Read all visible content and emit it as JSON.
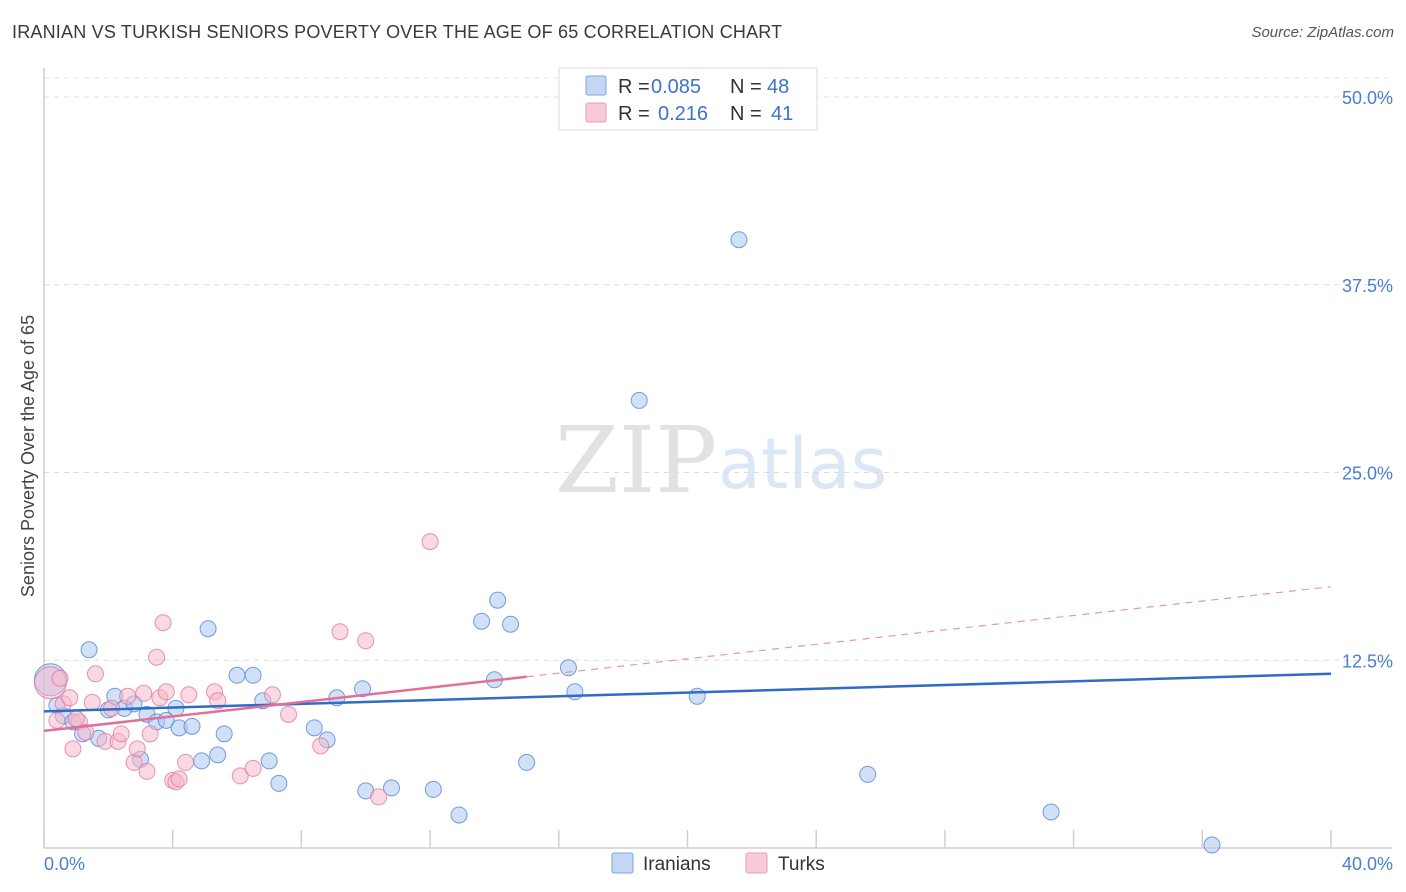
{
  "header": {
    "title": "IRANIAN VS TURKISH SENIORS POVERTY OVER THE AGE OF 65 CORRELATION CHART",
    "source": "Source: ZipAtlas.com"
  },
  "watermark": {
    "zip": "ZIP",
    "atlas": "atlas"
  },
  "legend": {
    "r_label": "R =",
    "n_label": "N =",
    "rows": [
      {
        "r": "0.085",
        "n": "48",
        "color": "#a9c7f0"
      },
      {
        "r": "0.216",
        "n": "41",
        "color": "#f6b9cc"
      }
    ]
  },
  "bottom_legend": [
    "Iranians",
    "Turks"
  ],
  "chart_data": {
    "type": "scatter",
    "title": "IRANIAN VS TURKISH SENIORS POVERTY OVER THE AGE OF 65 CORRELATION CHART",
    "xlabel": "",
    "ylabel": "Seniors Poverty Over the Age of 65",
    "xlim": [
      0,
      40
    ],
    "ylim": [
      0,
      52
    ],
    "x_tick_labels": [
      "0.0%",
      "40.0%"
    ],
    "y_ticks": [
      12.5,
      25.0,
      37.5,
      50.0
    ],
    "y_tick_labels": [
      "12.5%",
      "25.0%",
      "37.5%",
      "50.0%"
    ],
    "grid": true,
    "legend_position": "top-center",
    "series": [
      {
        "name": "Iranians",
        "color": "#4a7fd0",
        "fill": "#a9c7f0",
        "r": 0.085,
        "n": 48,
        "trend": {
          "x": [
            0,
            40
          ],
          "y": [
            9.1,
            11.6
          ],
          "style": "solid",
          "color": "#2f6bc7"
        },
        "points": [
          {
            "x": 0.2,
            "y": 11.2,
            "big": true
          },
          {
            "x": 0.4,
            "y": 9.5
          },
          {
            "x": 0.6,
            "y": 8.8
          },
          {
            "x": 0.9,
            "y": 8.4
          },
          {
            "x": 1.2,
            "y": 7.6
          },
          {
            "x": 1.4,
            "y": 13.2
          },
          {
            "x": 1.7,
            "y": 7.3
          },
          {
            "x": 2.0,
            "y": 9.2
          },
          {
            "x": 2.2,
            "y": 10.1
          },
          {
            "x": 2.5,
            "y": 9.3
          },
          {
            "x": 2.8,
            "y": 9.6
          },
          {
            "x": 3.0,
            "y": 5.9
          },
          {
            "x": 3.2,
            "y": 8.9
          },
          {
            "x": 3.5,
            "y": 8.4
          },
          {
            "x": 3.8,
            "y": 8.5
          },
          {
            "x": 4.1,
            "y": 9.3
          },
          {
            "x": 4.2,
            "y": 8.0
          },
          {
            "x": 4.6,
            "y": 8.1
          },
          {
            "x": 4.9,
            "y": 5.8
          },
          {
            "x": 5.1,
            "y": 14.6
          },
          {
            "x": 5.4,
            "y": 6.2
          },
          {
            "x": 5.6,
            "y": 7.6
          },
          {
            "x": 6.0,
            "y": 11.5
          },
          {
            "x": 6.5,
            "y": 11.5
          },
          {
            "x": 6.8,
            "y": 9.8
          },
          {
            "x": 7.0,
            "y": 5.8
          },
          {
            "x": 7.3,
            "y": 4.3
          },
          {
            "x": 8.4,
            "y": 8.0
          },
          {
            "x": 8.8,
            "y": 7.2
          },
          {
            "x": 9.1,
            "y": 10.0
          },
          {
            "x": 9.9,
            "y": 10.6
          },
          {
            "x": 10.0,
            "y": 3.8
          },
          {
            "x": 10.8,
            "y": 4.0
          },
          {
            "x": 12.1,
            "y": 3.9
          },
          {
            "x": 12.9,
            "y": 2.2
          },
          {
            "x": 13.6,
            "y": 15.1
          },
          {
            "x": 14.0,
            "y": 11.2
          },
          {
            "x": 14.1,
            "y": 16.5
          },
          {
            "x": 14.5,
            "y": 14.9
          },
          {
            "x": 15.0,
            "y": 5.7
          },
          {
            "x": 16.3,
            "y": 12.0
          },
          {
            "x": 16.5,
            "y": 10.4
          },
          {
            "x": 18.5,
            "y": 29.8
          },
          {
            "x": 20.3,
            "y": 10.1
          },
          {
            "x": 21.6,
            "y": 40.5
          },
          {
            "x": 25.6,
            "y": 4.9
          },
          {
            "x": 31.3,
            "y": 2.4
          },
          {
            "x": 36.3,
            "y": 0.2
          }
        ]
      },
      {
        "name": "Turks",
        "color": "#e07098",
        "fill": "#f6b9cc",
        "r": 0.216,
        "n": 41,
        "trend": {
          "x": [
            0,
            15
          ],
          "y": [
            7.8,
            11.4
          ],
          "style": "solid",
          "color": "#e07098",
          "ext": {
            "x": [
              15,
              40
            ],
            "y": [
              11.4,
              17.4
            ],
            "style": "dashed"
          }
        },
        "points": [
          {
            "x": 0.2,
            "y": 11.0,
            "big": true
          },
          {
            "x": 0.4,
            "y": 8.5
          },
          {
            "x": 0.6,
            "y": 9.6
          },
          {
            "x": 0.8,
            "y": 10.0
          },
          {
            "x": 0.9,
            "y": 6.6
          },
          {
            "x": 1.1,
            "y": 8.4
          },
          {
            "x": 1.3,
            "y": 7.7
          },
          {
            "x": 1.5,
            "y": 9.7
          },
          {
            "x": 1.6,
            "y": 11.6
          },
          {
            "x": 1.9,
            "y": 7.1
          },
          {
            "x": 2.1,
            "y": 9.3
          },
          {
            "x": 2.3,
            "y": 7.1
          },
          {
            "x": 2.4,
            "y": 7.6
          },
          {
            "x": 2.6,
            "y": 10.1
          },
          {
            "x": 2.8,
            "y": 5.7
          },
          {
            "x": 2.9,
            "y": 6.6
          },
          {
            "x": 3.1,
            "y": 10.3
          },
          {
            "x": 3.2,
            "y": 5.1
          },
          {
            "x": 3.3,
            "y": 7.6
          },
          {
            "x": 3.5,
            "y": 12.7
          },
          {
            "x": 3.6,
            "y": 10.0
          },
          {
            "x": 3.7,
            "y": 15.0
          },
          {
            "x": 3.8,
            "y": 10.4
          },
          {
            "x": 4.0,
            "y": 4.5
          },
          {
            "x": 4.1,
            "y": 4.4
          },
          {
            "x": 4.2,
            "y": 4.6
          },
          {
            "x": 4.4,
            "y": 5.7
          },
          {
            "x": 4.5,
            "y": 10.2
          },
          {
            "x": 5.3,
            "y": 10.4
          },
          {
            "x": 5.4,
            "y": 9.8
          },
          {
            "x": 6.1,
            "y": 4.8
          },
          {
            "x": 6.5,
            "y": 5.3
          },
          {
            "x": 7.1,
            "y": 10.2
          },
          {
            "x": 7.6,
            "y": 8.9
          },
          {
            "x": 8.6,
            "y": 6.8
          },
          {
            "x": 9.2,
            "y": 14.4
          },
          {
            "x": 10.0,
            "y": 13.8
          },
          {
            "x": 10.4,
            "y": 3.4
          },
          {
            "x": 12.0,
            "y": 20.4
          },
          {
            "x": 0.5,
            "y": 11.3
          },
          {
            "x": 1.0,
            "y": 8.6
          }
        ]
      }
    ]
  }
}
